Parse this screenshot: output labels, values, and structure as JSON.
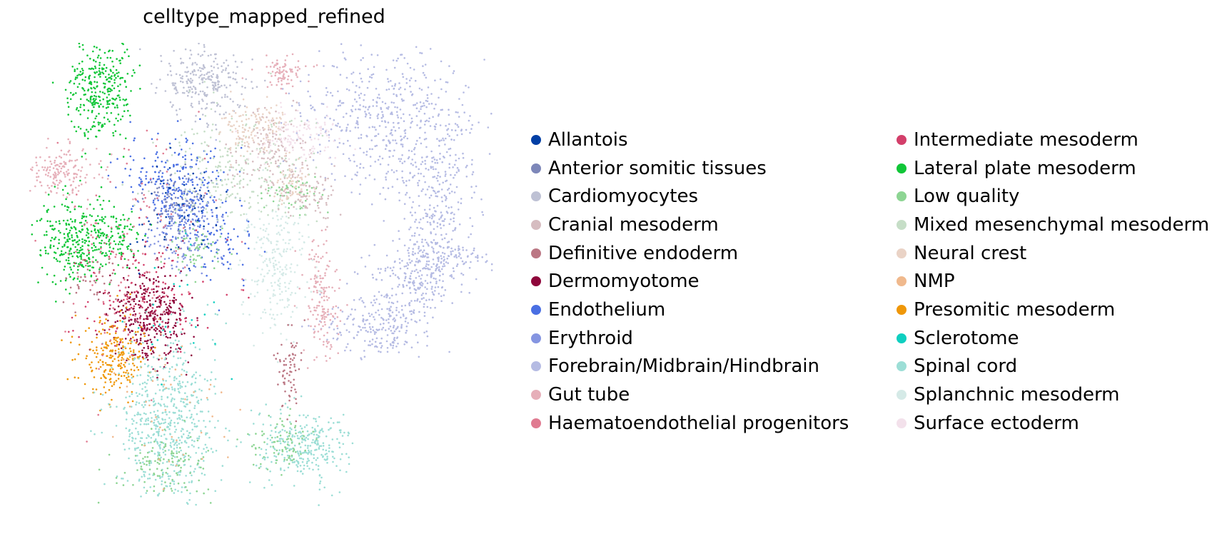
{
  "chart_data": {
    "type": "scatter",
    "title": "celltype_mapped_refined",
    "xlabel": "",
    "ylabel": "",
    "grid": false,
    "legend_placement": "right",
    "series": [
      {
        "name": "Allantois",
        "color": "#023fa5"
      },
      {
        "name": "Anterior somitic tissues",
        "color": "#7d87b9"
      },
      {
        "name": "Cardiomyocytes",
        "color": "#bec1d4"
      },
      {
        "name": "Cranial mesoderm",
        "color": "#d6bcc0"
      },
      {
        "name": "Definitive endoderm",
        "color": "#bb7784"
      },
      {
        "name": "Dermomyotome",
        "color": "#8e063b"
      },
      {
        "name": "Endothelium",
        "color": "#4a6fe3"
      },
      {
        "name": "Erythroid",
        "color": "#8595e1"
      },
      {
        "name": "Forebrain/Midbrain/Hindbrain",
        "color": "#b5bbe3"
      },
      {
        "name": "Gut tube",
        "color": "#e6afb9"
      },
      {
        "name": "Haematoendothelial progenitors",
        "color": "#e07b91"
      },
      {
        "name": "Intermediate mesoderm",
        "color": "#d33f6a"
      },
      {
        "name": "Lateral plate mesoderm",
        "color": "#11c638"
      },
      {
        "name": "Low quality",
        "color": "#8dd593"
      },
      {
        "name": "Mixed mesenchymal mesoderm",
        "color": "#c6dec7"
      },
      {
        "name": "Neural crest",
        "color": "#ead3c6"
      },
      {
        "name": "NMP",
        "color": "#f0b98d"
      },
      {
        "name": "Presomitic mesoderm",
        "color": "#ef9708"
      },
      {
        "name": "Sclerotome",
        "color": "#0fcfc0"
      },
      {
        "name": "Spinal cord",
        "color": "#9cded6"
      },
      {
        "name": "Splanchnic mesoderm",
        "color": "#d5eae7"
      },
      {
        "name": "Surface ectoderm",
        "color": "#f3e1eb"
      }
    ]
  }
}
